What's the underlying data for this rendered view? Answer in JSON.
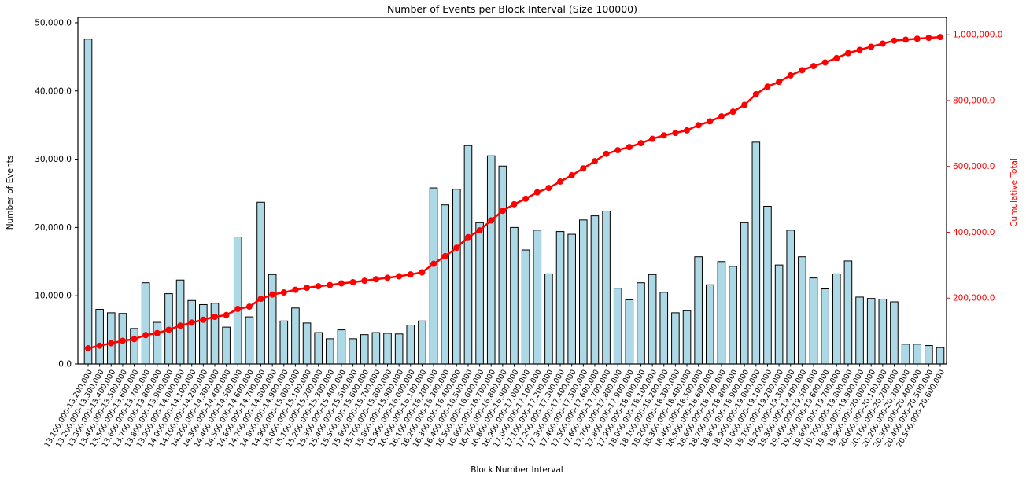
{
  "chart_data": {
    "type": "bar+line",
    "title": "Number of Events per Block Interval (Size 100000)",
    "xlabel": "Block Number Interval",
    "ylabel_left": "Number of Events",
    "ylabel_right": "Cumulative Total",
    "grid": false,
    "legend": "none",
    "colors": {
      "bar_fill": "#add8e6",
      "bar_edge": "#000000",
      "line": "#ff0000",
      "right_axis_text": "#ff0000",
      "text": "#000000",
      "spine": "#000000",
      "background": "#ffffff"
    },
    "categories": [
      "13,100,000-13,200,000",
      "13,200,000-13,300,000",
      "13,300,000-13,400,000",
      "13,400,000-13,500,000",
      "13,500,000-13,600,000",
      "13,600,000-13,700,000",
      "13,700,000-13,800,000",
      "13,800,000-13,900,000",
      "13,900,000-14,000,000",
      "14,000,000-14,100,000",
      "14,100,000-14,200,000",
      "14,200,000-14,300,000",
      "14,300,000-14,400,000",
      "14,400,000-14,500,000",
      "14,500,000-14,600,000",
      "14,600,000-14,700,000",
      "14,700,000-14,800,000",
      "14,800,000-14,900,000",
      "14,900,000-15,000,000",
      "15,000,000-15,100,000",
      "15,100,000-15,200,000",
      "15,200,000-15,300,000",
      "15,300,000-15,400,000",
      "15,400,000-15,500,000",
      "15,500,000-15,600,000",
      "15,600,000-15,700,000",
      "15,700,000-15,800,000",
      "15,800,000-15,900,000",
      "15,900,000-16,000,000",
      "16,000,000-16,100,000",
      "16,100,000-16,200,000",
      "16,200,000-16,300,000",
      "16,300,000-16,400,000",
      "16,400,000-16,500,000",
      "16,500,000-16,600,000",
      "16,600,000-16,700,000",
      "16,700,000-16,800,000",
      "16,800,000-16,900,000",
      "16,900,000-17,000,000",
      "17,000,000-17,100,000",
      "17,100,000-17,200,000",
      "17,200,000-17,300,000",
      "17,300,000-17,400,000",
      "17,400,000-17,500,000",
      "17,500,000-17,600,000",
      "17,600,000-17,700,000",
      "17,700,000-17,800,000",
      "17,800,000-17,900,000",
      "17,900,000-18,000,000",
      "18,000,000-18,100,000",
      "18,100,000-18,200,000",
      "18,200,000-18,300,000",
      "18,300,000-18,400,000",
      "18,400,000-18,500,000",
      "18,500,000-18,600,000",
      "18,600,000-18,700,000",
      "18,700,000-18,800,000",
      "18,800,000-18,900,000",
      "18,900,000-19,000,000",
      "19,000,000-19,100,000",
      "19,100,000-19,200,000",
      "19,200,000-19,300,000",
      "19,300,000-19,400,000",
      "19,400,000-19,500,000",
      "19,500,000-19,600,000",
      "19,600,000-19,700,000",
      "19,700,000-19,800,000",
      "19,800,000-19,900,000",
      "19,900,000-20,000,000",
      "20,000,000-20,100,000",
      "20,100,000-20,200,000",
      "20,200,000-20,300,000",
      "20,300,000-20,400,000",
      "20,400,000-20,500,000",
      "20,500,000-20,600,000"
    ],
    "series": [
      {
        "name": "Number of Events",
        "type": "bar",
        "axis": "left",
        "color": "#add8e6",
        "edge_color": "#000000",
        "values": [
          47600,
          8000,
          7500,
          7400,
          5200,
          11900,
          6100,
          10300,
          12300,
          9300,
          8700,
          8900,
          5400,
          18600,
          6900,
          23700,
          13100,
          6300,
          8200,
          6000,
          4600,
          3700,
          5000,
          3700,
          4300,
          4600,
          4500,
          4400,
          5700,
          6300,
          25800,
          23300,
          25600,
          32000,
          20700,
          30500,
          29000,
          20000,
          16700,
          19600,
          13200,
          19400,
          19000,
          21100,
          21700,
          22400,
          11100,
          9400,
          11900,
          13100,
          10500,
          7500,
          7800,
          15700,
          11600,
          15000,
          14300,
          20700,
          32500,
          23100,
          14500,
          19600,
          15700,
          12600,
          11000,
          13200,
          15100,
          9800,
          9600,
          9500,
          9100,
          2900,
          2900,
          2700,
          2400
        ]
      },
      {
        "name": "Cumulative Total",
        "type": "line",
        "axis": "right",
        "color": "#ff0000",
        "marker": "circle",
        "values": [
          47600,
          55600,
          63100,
          70500,
          75700,
          87600,
          93700,
          104000,
          116300,
          125600,
          134300,
          143200,
          148600,
          167200,
          174100,
          197800,
          210900,
          217200,
          225400,
          231400,
          236000,
          239700,
          244700,
          248400,
          252700,
          257300,
          261800,
          266200,
          271900,
          278200,
          304000,
          327300,
          352900,
          384900,
          405600,
          436100,
          465100,
          485100,
          501800,
          521400,
          534600,
          554000,
          573000,
          594100,
          615800,
          638200,
          649300,
          658700,
          670600,
          683700,
          694200,
          701700,
          709500,
          725200,
          736800,
          751800,
          766100,
          786800,
          819300,
          842400,
          856900,
          876500,
          892200,
          904800,
          915800,
          929000,
          944100,
          953900,
          963500,
          973000,
          982100,
          985000,
          987900,
          990600,
          993000
        ]
      }
    ],
    "y_left": {
      "lim": [
        0,
        50800
      ],
      "ticks": [
        {
          "v": 0,
          "label": "0.0"
        },
        {
          "v": 10000,
          "label": "10,000.0"
        },
        {
          "v": 20000,
          "label": "20,000.0"
        },
        {
          "v": 30000,
          "label": "30,000.0"
        },
        {
          "v": 40000,
          "label": "40,000.0"
        },
        {
          "v": 50000,
          "label": "50,000.0"
        }
      ]
    },
    "y_right": {
      "lim": [
        0,
        1053000
      ],
      "ticks": [
        {
          "v": 200000,
          "label": "200,000.0"
        },
        {
          "v": 400000,
          "label": "400,000.0"
        },
        {
          "v": 600000,
          "label": "600,000.0"
        },
        {
          "v": 800000,
          "label": "800,000.0"
        },
        {
          "v": 1000000,
          "label": "1,000,000.0"
        }
      ]
    }
  }
}
